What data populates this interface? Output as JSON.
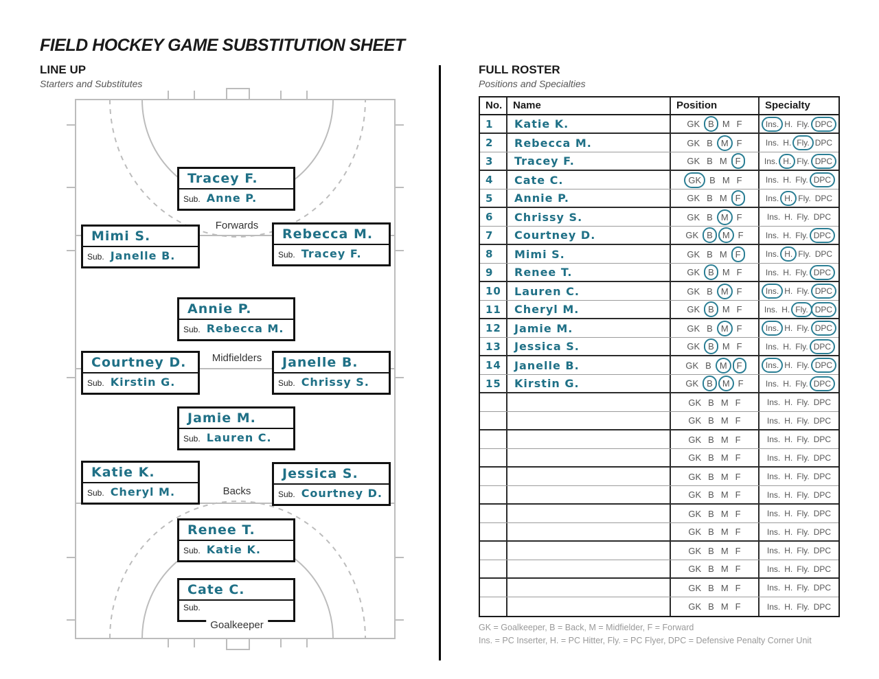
{
  "title": "FIELD HOCKEY GAME SUBSTITUTION SHEET",
  "lineup": {
    "heading": "LINE UP",
    "subheading": "Starters and Substitutes",
    "sub_label": "Sub.",
    "section_labels": {
      "forwards": "Forwards",
      "midfielders": "Midfielders",
      "backs": "Backs",
      "goalkeeper": "Goalkeeper"
    },
    "positions": [
      {
        "id": "center-forward",
        "starter": "Tracey F.",
        "sub": "Anne P."
      },
      {
        "id": "left-forward",
        "starter": "Mimi S.",
        "sub": "Janelle B."
      },
      {
        "id": "right-forward",
        "starter": "Rebecca M.",
        "sub": "Tracey F."
      },
      {
        "id": "attacking-mid",
        "starter": "Annie P.",
        "sub": "Rebecca M."
      },
      {
        "id": "left-mid",
        "starter": "Courtney D.",
        "sub": "Kirstin G."
      },
      {
        "id": "right-mid",
        "starter": "Janelle B.",
        "sub": "Chrissy S."
      },
      {
        "id": "defensive-mid",
        "starter": "Jamie M.",
        "sub": "Lauren C."
      },
      {
        "id": "left-back",
        "starter": "Katie K.",
        "sub": "Cheryl M."
      },
      {
        "id": "right-back",
        "starter": "Jessica S.",
        "sub": "Courtney D."
      },
      {
        "id": "sweeper",
        "starter": "Renee T.",
        "sub": "Katie K."
      },
      {
        "id": "goalkeeper",
        "starter": "Cate C.",
        "sub": ""
      }
    ]
  },
  "roster": {
    "heading": "FULL ROSTER",
    "subheading": "Positions and Specialties",
    "columns": [
      "No.",
      "Name",
      "Position",
      "Specialty"
    ],
    "position_options": [
      "GK",
      "B",
      "M",
      "F"
    ],
    "specialty_options": [
      "Ins.",
      "H.",
      "Fly.",
      "DPC"
    ],
    "players": [
      {
        "no": "1",
        "name": "Katie K.",
        "positions": [
          "B"
        ],
        "specialties": [
          "Ins.",
          "DPC"
        ]
      },
      {
        "no": "2",
        "name": "Rebecca M.",
        "positions": [
          "M"
        ],
        "specialties": [
          "Fly."
        ]
      },
      {
        "no": "3",
        "name": "Tracey F.",
        "positions": [
          "F"
        ],
        "specialties": [
          "H.",
          "DPC"
        ]
      },
      {
        "no": "4",
        "name": "Cate C.",
        "positions": [
          "GK"
        ],
        "specialties": [
          "DPC"
        ]
      },
      {
        "no": "5",
        "name": "Annie P.",
        "positions": [
          "F"
        ],
        "specialties": [
          "H."
        ]
      },
      {
        "no": "6",
        "name": "Chrissy S.",
        "positions": [
          "M"
        ],
        "specialties": []
      },
      {
        "no": "7",
        "name": "Courtney D.",
        "positions": [
          "B",
          "M"
        ],
        "specialties": [
          "DPC"
        ]
      },
      {
        "no": "8",
        "name": "Mimi S.",
        "positions": [
          "F"
        ],
        "specialties": [
          "H."
        ]
      },
      {
        "no": "9",
        "name": "Renee T.",
        "positions": [
          "B"
        ],
        "specialties": [
          "DPC"
        ]
      },
      {
        "no": "10",
        "name": "Lauren C.",
        "positions": [
          "M"
        ],
        "specialties": [
          "Ins.",
          "DPC"
        ]
      },
      {
        "no": "11",
        "name": "Cheryl M.",
        "positions": [
          "B"
        ],
        "specialties": [
          "Fly.",
          "DPC"
        ]
      },
      {
        "no": "12",
        "name": "Jamie M.",
        "positions": [
          "M"
        ],
        "specialties": [
          "Ins.",
          "DPC"
        ]
      },
      {
        "no": "13",
        "name": "Jessica S.",
        "positions": [
          "B"
        ],
        "specialties": [
          "DPC"
        ]
      },
      {
        "no": "14",
        "name": "Janelle B.",
        "positions": [
          "M",
          "F"
        ],
        "specialties": [
          "Ins.",
          "DPC"
        ]
      },
      {
        "no": "15",
        "name": "Kirstin G.",
        "positions": [
          "B",
          "M"
        ],
        "specialties": [
          "DPC"
        ]
      }
    ],
    "empty_row_count": 12,
    "legend": [
      "GK = Goalkeeper, B =  Back, M = Midfielder, F = Forward",
      "Ins. = PC Inserter, H. = PC Hitter, Fly. = PC Flyer, DPC = Defensive Penalty Corner Unit"
    ]
  },
  "colors": {
    "ink_teal": "#1f7086",
    "circle_teal": "#2a7e94",
    "print_gray": "#555555",
    "legend_gray": "#999999",
    "field_line_gray": "#bcbcbc"
  }
}
